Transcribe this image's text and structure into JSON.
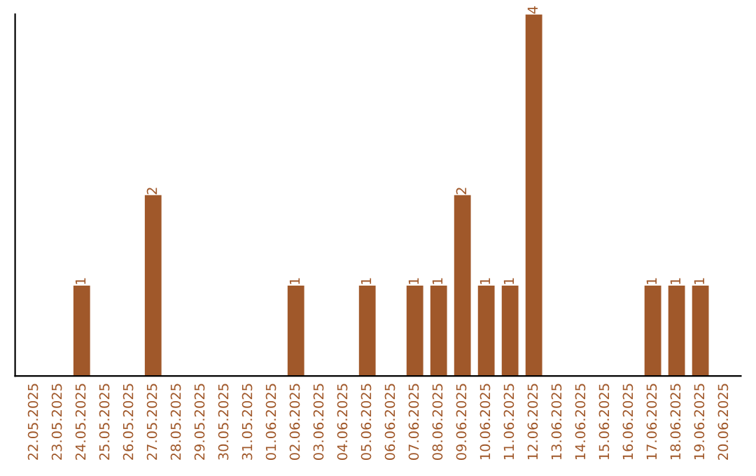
{
  "chart_data": {
    "type": "bar",
    "categories": [
      "22.05.2025",
      "23.05.2025",
      "24.05.2025",
      "25.05.2025",
      "26.05.2025",
      "27.05.2025",
      "28.05.2025",
      "29.05.2025",
      "30.05.2025",
      "31.05.2025",
      "01.06.2025",
      "02.06.2025",
      "03.06.2025",
      "04.06.2025",
      "05.06.2025",
      "06.06.2025",
      "07.06.2025",
      "08.06.2025",
      "09.06.2025",
      "10.06.2025",
      "11.06.2025",
      "12.06.2025",
      "13.06.2025",
      "14.06.2025",
      "15.06.2025",
      "16.06.2025",
      "17.06.2025",
      "18.06.2025",
      "19.06.2025",
      "20.06.2025"
    ],
    "values": [
      0,
      0,
      1,
      0,
      0,
      2,
      0,
      0,
      0,
      0,
      0,
      1,
      0,
      0,
      1,
      0,
      1,
      1,
      2,
      1,
      1,
      4,
      0,
      0,
      0,
      0,
      1,
      1,
      1,
      0
    ],
    "value_labels": [
      null,
      null,
      "1",
      null,
      null,
      "2",
      null,
      null,
      null,
      null,
      null,
      "1",
      null,
      null,
      "1",
      null,
      "1",
      "1",
      "2",
      "1",
      "1",
      "4",
      null,
      null,
      null,
      null,
      "1",
      "1",
      "1",
      null
    ],
    "color": "#a0582a",
    "tick_labels": "x",
    "grid": false,
    "legend": false
  }
}
